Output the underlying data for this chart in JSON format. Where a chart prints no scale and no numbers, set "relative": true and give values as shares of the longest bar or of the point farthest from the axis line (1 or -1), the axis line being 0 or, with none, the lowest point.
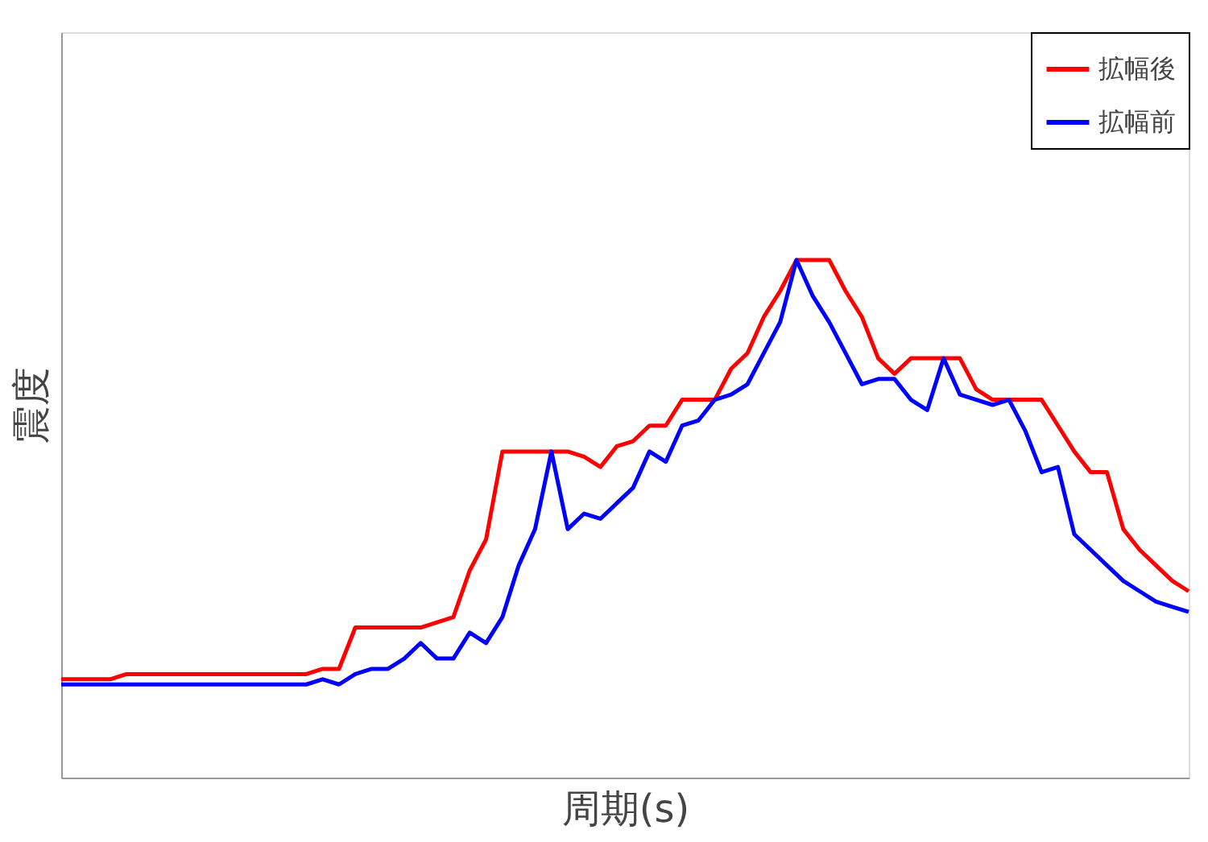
{
  "chart_data": {
    "type": "line",
    "relative": true,
    "xlabel": "周期(s)",
    "ylabel": "震度",
    "legend": "top right",
    "categories": [
      null,
      null,
      null,
      null,
      null,
      null,
      null,
      null,
      null,
      null,
      null,
      null,
      null,
      null,
      null,
      null,
      null,
      null,
      null,
      null,
      null,
      null,
      null,
      null,
      null,
      null,
      null,
      null,
      null,
      null,
      null,
      null,
      null,
      null,
      null,
      null,
      null,
      null,
      null,
      null,
      null,
      null,
      null,
      null,
      null,
      null,
      null,
      null,
      null,
      null,
      null,
      null,
      null,
      null,
      null,
      null,
      null,
      null,
      null,
      null,
      null,
      null,
      null,
      null,
      null,
      null,
      null,
      null,
      null,
      null
    ],
    "series": [
      {
        "name": "拡幅後",
        "color": "#ff0000",
        "values": [
          0.19,
          0.19,
          0.19,
          0.19,
          0.2,
          0.2,
          0.2,
          0.2,
          0.2,
          0.2,
          0.2,
          0.2,
          0.2,
          0.2,
          0.2,
          0.2,
          0.21,
          0.21,
          0.29,
          0.29,
          0.29,
          0.29,
          0.29,
          0.3,
          0.31,
          0.4,
          0.46,
          0.63,
          0.63,
          0.63,
          0.63,
          0.63,
          0.62,
          0.6,
          0.64,
          0.65,
          0.68,
          0.68,
          0.73,
          0.73,
          0.73,
          0.79,
          0.82,
          0.89,
          0.94,
          1,
          1,
          1,
          0.94,
          0.89,
          0.81,
          0.78,
          0.81,
          0.81,
          0.81,
          0.81,
          0.75,
          0.73,
          0.73,
          0.73,
          0.73,
          0.68,
          0.63,
          0.59,
          0.59,
          0.48,
          0.44,
          0.41,
          0.38,
          0.36
        ]
      },
      {
        "name": "拡幅前",
        "color": "#0000ff",
        "values": [
          0.18,
          0.18,
          0.18,
          0.18,
          0.18,
          0.18,
          0.18,
          0.18,
          0.18,
          0.18,
          0.18,
          0.18,
          0.18,
          0.18,
          0.18,
          0.18,
          0.19,
          0.18,
          0.2,
          0.21,
          0.21,
          0.23,
          0.26,
          0.23,
          0.23,
          0.28,
          0.26,
          0.31,
          0.41,
          0.48,
          0.63,
          0.48,
          0.51,
          0.5,
          0.53,
          0.56,
          0.63,
          0.61,
          0.68,
          0.69,
          0.73,
          0.74,
          0.76,
          0.82,
          0.88,
          1,
          0.93,
          0.88,
          0.82,
          0.76,
          0.77,
          0.77,
          0.73,
          0.71,
          0.81,
          0.74,
          0.73,
          0.72,
          0.73,
          0.67,
          0.59,
          0.6,
          0.47,
          0.44,
          0.41,
          0.38,
          0.36,
          0.34,
          0.33,
          0.32
        ]
      }
    ]
  }
}
